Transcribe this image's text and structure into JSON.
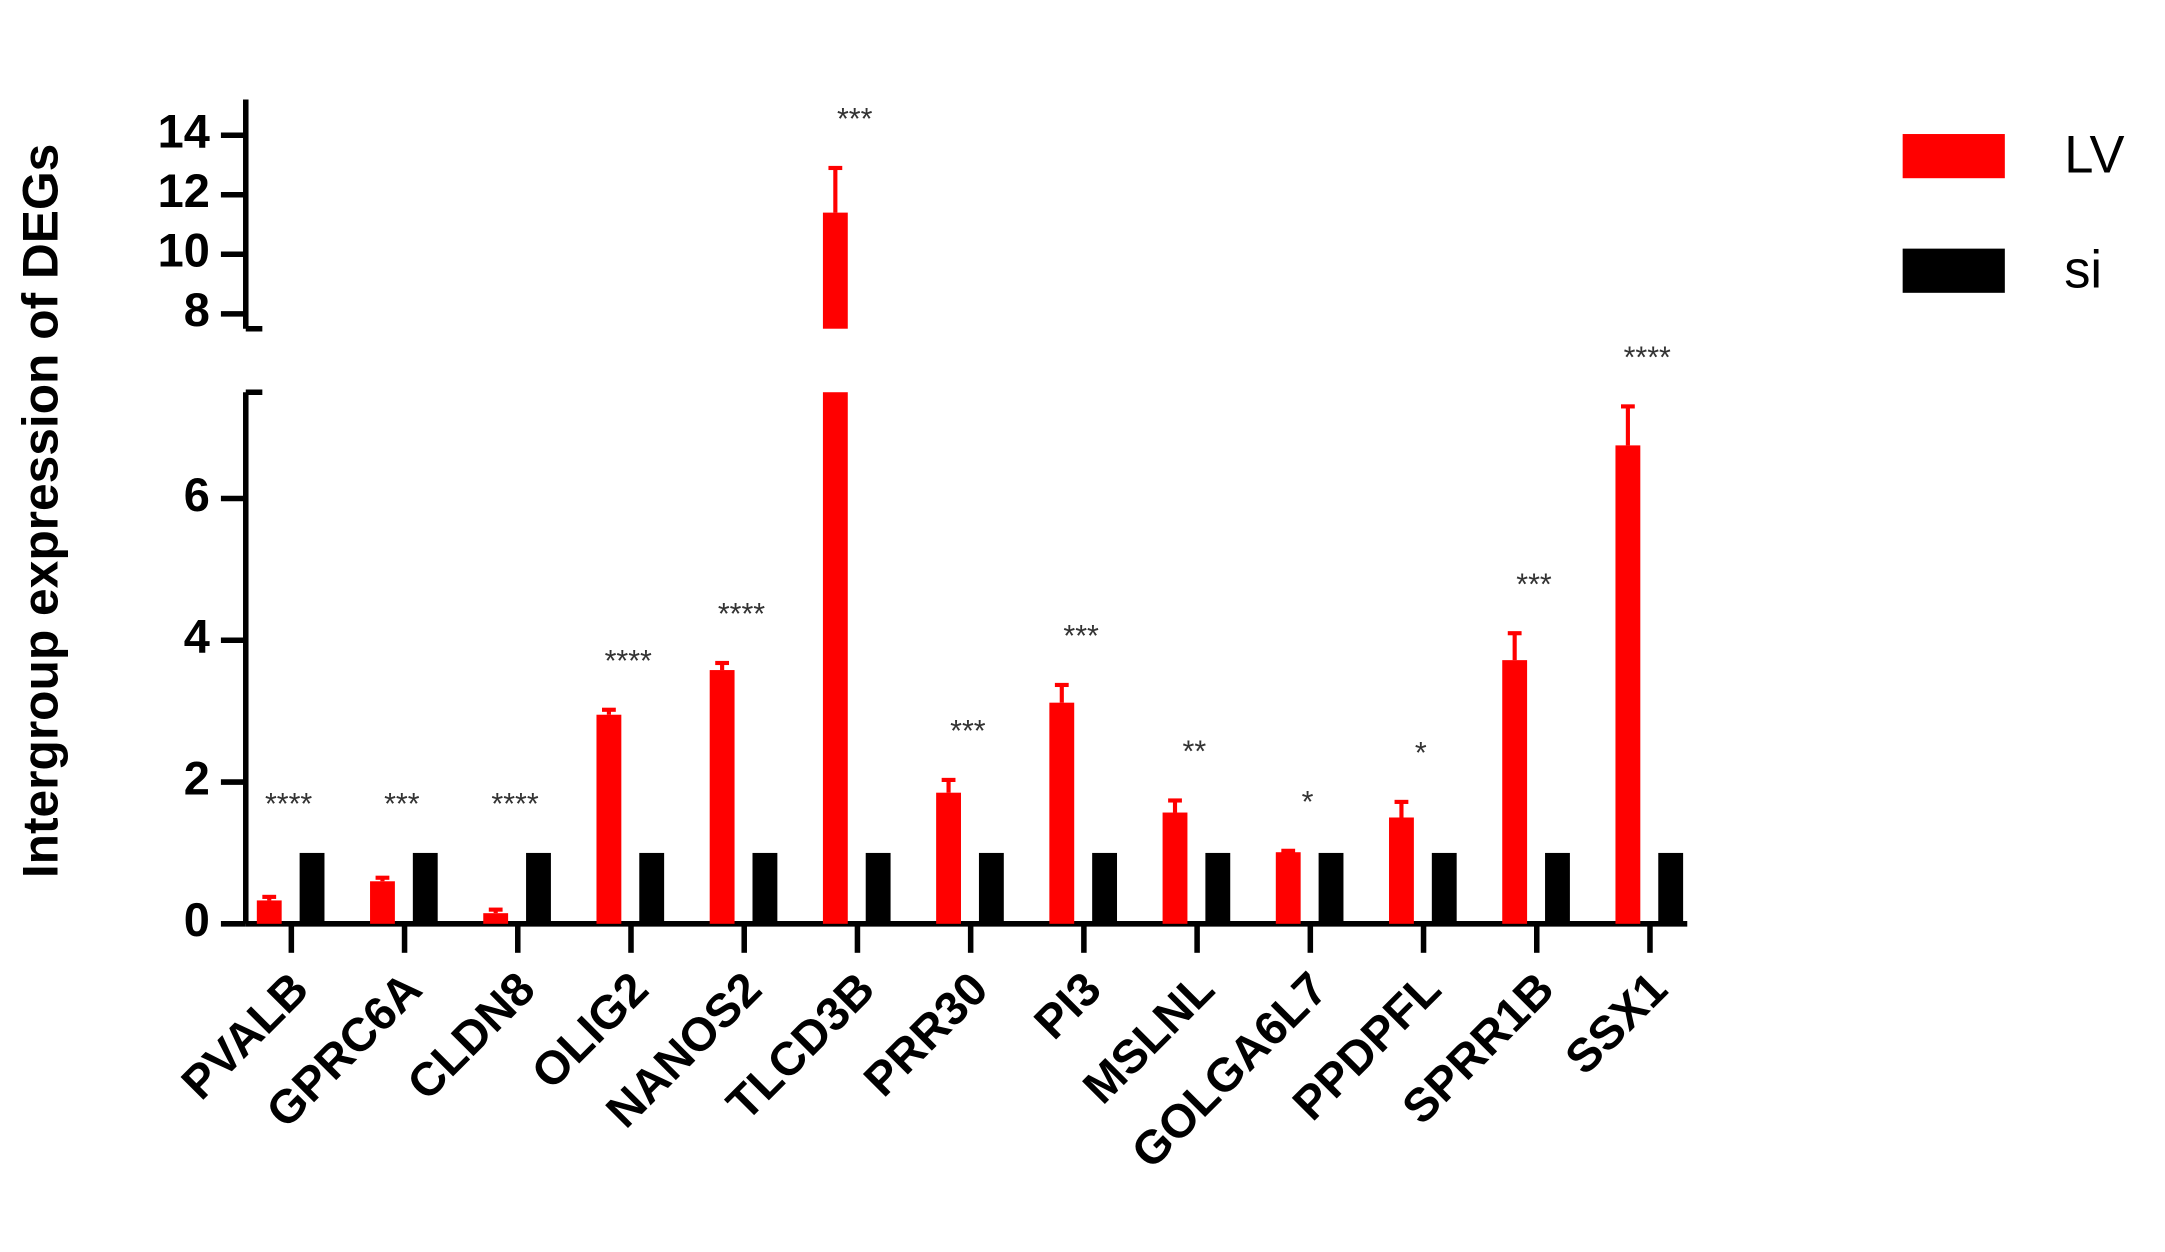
{
  "chart_data": {
    "type": "bar",
    "ylabel": "Intergroup expression of DEGs",
    "categories": [
      "PVALB",
      "GPRC6A",
      "CLDN8",
      "OLIG2",
      "NANOS2",
      "TLCD3B",
      "PRR30",
      "PI3",
      "MSLNL",
      "GOLGA6L7",
      "PPDPFL",
      "SPRR1B",
      "SSX1"
    ],
    "series": [
      {
        "name": "LV",
        "color": "#ff0000",
        "values": [
          0.33,
          0.6,
          0.15,
          2.95,
          3.58,
          11.4,
          1.85,
          3.12,
          1.57,
          1.01,
          1.5,
          3.72,
          6.75
        ],
        "errors": [
          0.05,
          0.05,
          0.05,
          0.07,
          0.1,
          1.5,
          0.18,
          0.25,
          0.17,
          0.02,
          0.22,
          0.38,
          0.55
        ]
      },
      {
        "name": "si",
        "color": "#000000",
        "values": [
          1,
          1,
          1,
          1,
          1,
          1,
          1,
          1,
          1,
          1,
          1,
          1,
          1
        ]
      }
    ],
    "annotations": [
      "****",
      "***",
      "****",
      "****",
      "****",
      "***",
      "***",
      "***",
      "**",
      "*",
      "*",
      "***",
      "****"
    ],
    "y_segments": [
      {
        "ylim": [
          0,
          7.5
        ],
        "yticks": [
          0,
          2,
          4,
          6
        ]
      },
      {
        "ylim": [
          7.5,
          15.2
        ],
        "yticks": [
          8,
          10,
          12,
          14
        ]
      }
    ],
    "legend": "top-right"
  }
}
